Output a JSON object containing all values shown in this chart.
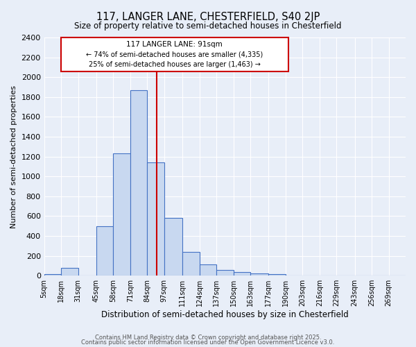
{
  "title": "117, LANGER LANE, CHESTERFIELD, S40 2JP",
  "subtitle": "Size of property relative to semi-detached houses in Chesterfield",
  "xlabel": "Distribution of semi-detached houses by size in Chesterfield",
  "ylabel": "Number of semi-detached properties",
  "categories": [
    "5sqm",
    "18sqm",
    "31sqm",
    "45sqm",
    "58sqm",
    "71sqm",
    "84sqm",
    "97sqm",
    "111sqm",
    "124sqm",
    "137sqm",
    "150sqm",
    "163sqm",
    "177sqm",
    "190sqm",
    "203sqm",
    "216sqm",
    "229sqm",
    "243sqm",
    "256sqm",
    "269sqm"
  ],
  "bin_edges": [
    5,
    18,
    31,
    45,
    58,
    71,
    84,
    97,
    111,
    124,
    137,
    150,
    163,
    177,
    190,
    203,
    216,
    229,
    243,
    256,
    269,
    282
  ],
  "heights": [
    15,
    75,
    0,
    500,
    1230,
    1870,
    1140,
    580,
    240,
    110,
    60,
    35,
    20,
    15,
    0,
    0,
    0,
    0,
    0,
    0,
    0
  ],
  "bar_color": "#c8d8f0",
  "bar_edge_color": "#4472c4",
  "property_size": 91,
  "property_label": "117 LANGER LANE: 91sqm",
  "pct_smaller": 74,
  "n_smaller": 4335,
  "pct_larger": 25,
  "n_larger": 1463,
  "vline_color": "#cc0000",
  "box_edge_color": "#cc0000",
  "ylim": [
    0,
    2400
  ],
  "yticks": [
    0,
    200,
    400,
    600,
    800,
    1000,
    1200,
    1400,
    1600,
    1800,
    2000,
    2200,
    2400
  ],
  "background_color": "#e8eef8",
  "grid_color": "#ffffff",
  "footer1": "Contains HM Land Registry data © Crown copyright and database right 2025.",
  "footer2": "Contains public sector information licensed under the Open Government Licence v3.0."
}
